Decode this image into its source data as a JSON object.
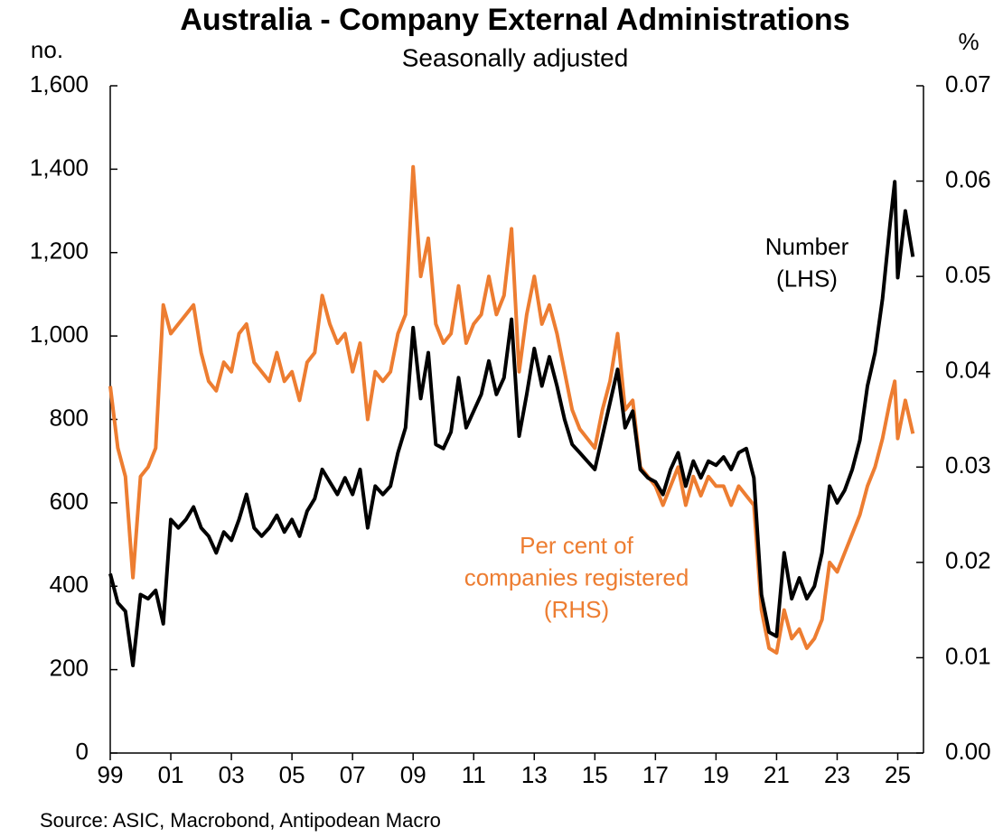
{
  "chart_data": {
    "type": "line",
    "title": "Australia - Company External Administrations",
    "subtitle": "Seasonally adjusted",
    "y_label": "no.",
    "y2_label": "%",
    "source": "Source: ASIC, Macrobond, Antipodean Macro",
    "annotations": [
      [
        "Number",
        "(LHS)"
      ],
      [
        "Per cent of",
        "companies registered",
        "(RHS)"
      ]
    ],
    "xlim": [
      1999,
      2025.85
    ],
    "xticks": [
      {
        "value": 1999,
        "label": "99"
      },
      {
        "value": 2001,
        "label": "01"
      },
      {
        "value": 2003,
        "label": "03"
      },
      {
        "value": 2005,
        "label": "05"
      },
      {
        "value": 2007,
        "label": "07"
      },
      {
        "value": 2009,
        "label": "09"
      },
      {
        "value": 2011,
        "label": "11"
      },
      {
        "value": 2013,
        "label": "13"
      },
      {
        "value": 2015,
        "label": "15"
      },
      {
        "value": 2017,
        "label": "17"
      },
      {
        "value": 2019,
        "label": "19"
      },
      {
        "value": 2021,
        "label": "21"
      },
      {
        "value": 2023,
        "label": "23"
      },
      {
        "value": 2025,
        "label": "25"
      }
    ],
    "ylim": [
      0,
      1600
    ],
    "yticks": [
      0,
      200,
      400,
      600,
      800,
      {
        "value": 1000,
        "label": "1,000"
      },
      {
        "value": 1200,
        "label": "1,200"
      },
      {
        "value": 1400,
        "label": "1,400"
      },
      {
        "value": 1600,
        "label": "1,600"
      }
    ],
    "y2lim": [
      0,
      0.07
    ],
    "y2ticks": [
      {
        "value": 0,
        "label": "0.00"
      },
      0.01,
      0.02,
      0.03,
      0.04,
      0.05,
      0.06,
      0.07
    ],
    "x": [
      1999,
      1999.25,
      1999.5,
      1999.75,
      2000,
      2000.25,
      2000.5,
      2000.75,
      2001,
      2001.25,
      2001.5,
      2001.75,
      2002,
      2002.25,
      2002.5,
      2002.75,
      2003,
      2003.25,
      2003.5,
      2003.75,
      2004,
      2004.25,
      2004.5,
      2004.75,
      2005,
      2005.25,
      2005.5,
      2005.75,
      2006,
      2006.25,
      2006.5,
      2006.75,
      2007,
      2007.25,
      2007.5,
      2007.75,
      2008,
      2008.25,
      2008.5,
      2008.75,
      2009,
      2009.25,
      2009.5,
      2009.75,
      2010,
      2010.25,
      2010.5,
      2010.75,
      2011,
      2011.25,
      2011.5,
      2011.75,
      2012,
      2012.25,
      2012.5,
      2012.75,
      2013,
      2013.25,
      2013.5,
      2013.75,
      2014,
      2014.25,
      2014.5,
      2014.75,
      2015,
      2015.25,
      2015.5,
      2015.75,
      2016,
      2016.25,
      2016.5,
      2016.75,
      2017,
      2017.25,
      2017.5,
      2017.75,
      2018,
      2018.25,
      2018.5,
      2018.75,
      2019,
      2019.25,
      2019.5,
      2019.75,
      2020,
      2020.25,
      2020.5,
      2020.75,
      2021,
      2021.25,
      2021.5,
      2021.75,
      2022,
      2022.25,
      2022.5,
      2022.75,
      2023,
      2023.25,
      2023.5,
      2023.75,
      2024,
      2024.25,
      2024.5,
      2024.75,
      2024.9,
      2025,
      2025.25,
      2025.5
    ],
    "series": [
      {
        "name": "Number (LHS)",
        "color": "#000000",
        "axis": "y",
        "values": [
          430,
          360,
          340,
          210,
          380,
          370,
          390,
          310,
          560,
          540,
          560,
          590,
          540,
          520,
          480,
          530,
          510,
          560,
          620,
          540,
          520,
          540,
          570,
          530,
          560,
          520,
          580,
          610,
          680,
          650,
          620,
          660,
          620,
          680,
          540,
          640,
          620,
          640,
          720,
          780,
          1020,
          850,
          960,
          740,
          730,
          770,
          900,
          780,
          820,
          860,
          940,
          860,
          900,
          1040,
          760,
          860,
          970,
          880,
          950,
          880,
          800,
          740,
          720,
          700,
          680,
          760,
          840,
          920,
          780,
          820,
          680,
          660,
          650,
          620,
          680,
          720,
          640,
          700,
          660,
          700,
          690,
          710,
          680,
          720,
          730,
          660,
          380,
          290,
          280,
          480,
          370,
          420,
          370,
          400,
          480,
          640,
          600,
          630,
          680,
          750,
          880,
          960,
          1090,
          1270,
          1370,
          1140,
          1300,
          1190
        ]
      },
      {
        "name": "Per cent of companies registered (RHS)",
        "color": "#ed7d31",
        "axis": "y2",
        "values": [
          0.0385,
          0.032,
          0.029,
          0.0184,
          0.029,
          0.03,
          0.032,
          0.047,
          0.044,
          0.045,
          0.046,
          0.047,
          0.042,
          0.039,
          0.038,
          0.041,
          0.04,
          0.044,
          0.045,
          0.041,
          0.04,
          0.039,
          0.042,
          0.039,
          0.04,
          0.037,
          0.041,
          0.042,
          0.048,
          0.045,
          0.043,
          0.044,
          0.04,
          0.043,
          0.035,
          0.04,
          0.039,
          0.04,
          0.044,
          0.046,
          0.0615,
          0.05,
          0.054,
          0.045,
          0.043,
          0.044,
          0.049,
          0.043,
          0.045,
          0.046,
          0.05,
          0.046,
          0.048,
          0.055,
          0.04,
          0.046,
          0.05,
          0.045,
          0.047,
          0.044,
          0.04,
          0.036,
          0.034,
          0.033,
          0.032,
          0.036,
          0.039,
          0.044,
          0.036,
          0.037,
          0.03,
          0.029,
          0.028,
          0.026,
          0.028,
          0.03,
          0.026,
          0.029,
          0.027,
          0.029,
          0.028,
          0.028,
          0.026,
          0.028,
          0.027,
          0.026,
          0.015,
          0.011,
          0.0105,
          0.015,
          0.012,
          0.013,
          0.011,
          0.012,
          0.014,
          0.02,
          0.019,
          0.021,
          0.023,
          0.025,
          0.028,
          0.03,
          0.033,
          0.037,
          0.039,
          0.033,
          0.037,
          0.0335
        ]
      }
    ]
  }
}
